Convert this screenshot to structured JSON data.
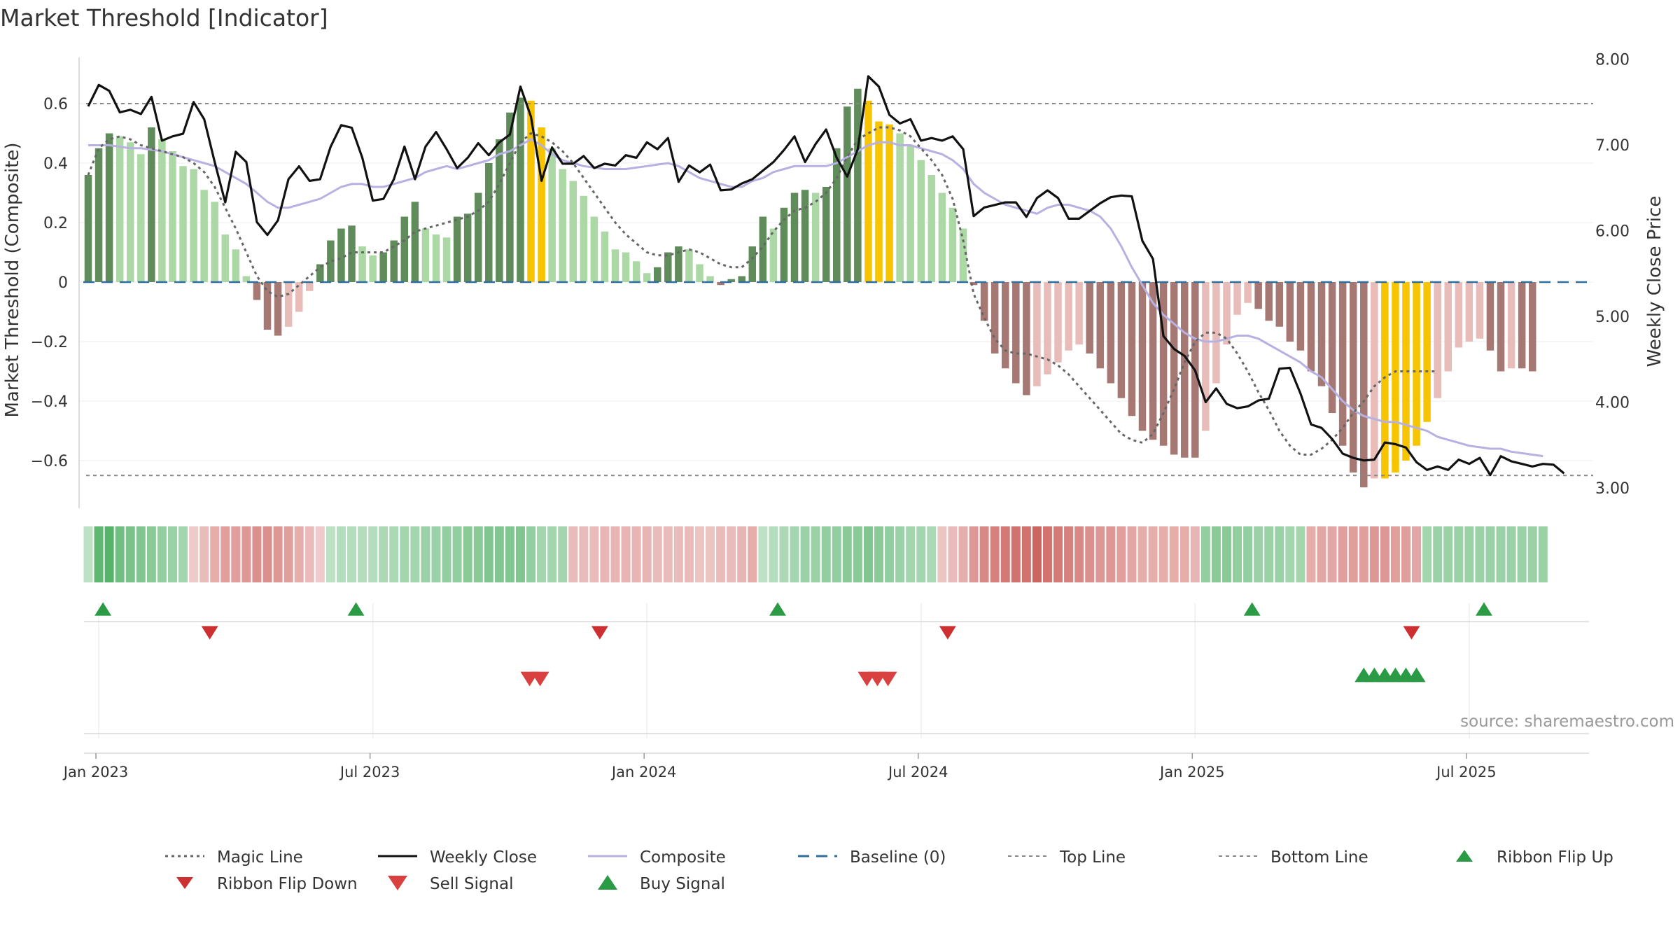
{
  "title": "Market Threshold [Indicator]",
  "source": "source: sharemaestro.com",
  "chart_data": {
    "type": "bar",
    "title": "Market Threshold [Indicator]",
    "ylabel_left": "Market Threshold (Composite)",
    "ylabel_right": "Weekly Close Price",
    "ylim_left": [
      -0.76,
      0.76
    ],
    "ylim_right": [
      2.9,
      8.0
    ],
    "left_ticks": [
      {
        "value": 0.6,
        "label": "0.6"
      },
      {
        "value": 0.4,
        "label": "0.4"
      },
      {
        "value": 0.2,
        "label": "0.2"
      },
      {
        "value": 0,
        "label": "0"
      },
      {
        "value": -0.2,
        "label": "−0.2"
      },
      {
        "value": -0.4,
        "label": "−0.4"
      },
      {
        "value": -0.6,
        "label": "−0.6"
      }
    ],
    "right_ticks": [
      {
        "value": 8,
        "label": "8.00"
      },
      {
        "value": 7,
        "label": "7.00"
      },
      {
        "value": 6,
        "label": "6.00"
      },
      {
        "value": 5,
        "label": "5.00"
      },
      {
        "value": 4,
        "label": "4.00"
      },
      {
        "value": 3,
        "label": "3.00"
      }
    ],
    "x_ticks": [
      {
        "week": 1,
        "label": "Jan 2023"
      },
      {
        "week": 27,
        "label": "Jul 2023"
      },
      {
        "week": 53,
        "label": "Jan 2024"
      },
      {
        "week": 79,
        "label": "Jul 2024"
      },
      {
        "week": 105,
        "label": "Jan 2025"
      },
      {
        "week": 131,
        "label": "Jul 2025"
      }
    ],
    "top_line": 0.6,
    "bottom_line": -0.65,
    "baseline": 0,
    "weeks_start_label": "2022-12-19",
    "bars": [
      0.36,
      0.45,
      0.5,
      0.49,
      0.47,
      0.43,
      0.52,
      0.48,
      0.44,
      0.39,
      0.38,
      0.31,
      0.27,
      0.16,
      0.11,
      0.02,
      -0.06,
      -0.16,
      -0.18,
      -0.15,
      -0.1,
      -0.03,
      0.06,
      0.14,
      0.18,
      0.19,
      0.12,
      0.09,
      0.1,
      0.14,
      0.22,
      0.27,
      0.18,
      0.16,
      0.15,
      0.22,
      0.23,
      0.3,
      0.4,
      0.48,
      0.57,
      0.62,
      0.61,
      0.52,
      0.45,
      0.38,
      0.34,
      0.29,
      0.22,
      0.17,
      0.11,
      0.1,
      0.07,
      0.03,
      0.05,
      0.1,
      0.12,
      0.11,
      0.06,
      0.02,
      -0.01,
      0.01,
      0.02,
      0.12,
      0.22,
      0.18,
      0.25,
      0.3,
      0.31,
      0.3,
      0.32,
      0.45,
      0.59,
      0.65,
      0.61,
      0.54,
      0.53,
      0.5,
      0.46,
      0.41,
      0.36,
      0.3,
      0.25,
      0.18,
      -0.01,
      -0.13,
      -0.24,
      -0.29,
      -0.34,
      -0.38,
      -0.35,
      -0.31,
      -0.27,
      -0.23,
      -0.21,
      -0.24,
      -0.29,
      -0.34,
      -0.39,
      -0.45,
      -0.5,
      -0.53,
      -0.55,
      -0.58,
      -0.59,
      -0.59,
      -0.5,
      -0.34,
      -0.21,
      -0.11,
      -0.07,
      -0.09,
      -0.13,
      -0.15,
      -0.2,
      -0.23,
      -0.3,
      -0.35,
      -0.44,
      -0.55,
      -0.64,
      -0.69,
      -0.66,
      -0.66,
      -0.64,
      -0.6,
      -0.55,
      -0.47,
      -0.39,
      -0.3,
      -0.22,
      -0.2,
      -0.19,
      -0.23,
      -0.3,
      -0.29,
      -0.29,
      -0.3
    ],
    "golden_weeks": [
      42,
      43,
      74,
      75,
      76,
      123,
      124,
      125,
      126,
      127
    ],
    "weekly_close": [
      7.45,
      7.7,
      7.63,
      7.38,
      7.41,
      7.36,
      7.56,
      7.05,
      7.1,
      7.13,
      7.5,
      7.3,
      6.8,
      6.33,
      6.92,
      6.8,
      6.1,
      5.95,
      6.12,
      6.6,
      6.75,
      6.58,
      6.6,
      6.98,
      7.23,
      7.2,
      6.85,
      6.35,
      6.37,
      6.6,
      6.98,
      6.6,
      6.98,
      7.15,
      6.95,
      6.73,
      6.85,
      7.02,
      6.88,
      7.03,
      7.12,
      7.68,
      7.33,
      6.58,
      6.97,
      6.78,
      6.78,
      6.87,
      6.73,
      6.78,
      6.76,
      6.88,
      6.85,
      7.03,
      6.95,
      7.08,
      6.57,
      6.76,
      6.68,
      6.77,
      6.47,
      6.48,
      6.55,
      6.6,
      6.7,
      6.8,
      6.94,
      7.1,
      6.8,
      7.01,
      7.18,
      6.85,
      6.63,
      6.95,
      7.8,
      7.68,
      7.35,
      7.25,
      7.3,
      7.05,
      7.08,
      7.05,
      7.1,
      6.95,
      6.17,
      6.27,
      6.3,
      6.33,
      6.33,
      6.16,
      6.38,
      6.47,
      6.38,
      6.14,
      6.14,
      6.23,
      6.32,
      6.39,
      6.41,
      6.4,
      5.88,
      5.67,
      4.77,
      4.62,
      4.54,
      4.37,
      4.0,
      4.16,
      3.98,
      3.93,
      3.95,
      4.02,
      4.04,
      4.39,
      4.4,
      4.1,
      3.74,
      3.7,
      3.57,
      3.4,
      3.35,
      3.32,
      3.33,
      3.53,
      3.51,
      3.47,
      3.3,
      3.21,
      3.25,
      3.21,
      3.33,
      3.28,
      3.35,
      3.15,
      3.37,
      3.31,
      3.28,
      3.25,
      3.28,
      3.27,
      3.17
    ],
    "composite": [
      0.46,
      0.46,
      0.46,
      0.455,
      0.45,
      0.45,
      0.445,
      0.44,
      0.43,
      0.42,
      0.41,
      0.4,
      0.39,
      0.37,
      0.35,
      0.33,
      0.3,
      0.27,
      0.25,
      0.25,
      0.26,
      0.27,
      0.28,
      0.3,
      0.32,
      0.33,
      0.33,
      0.32,
      0.32,
      0.33,
      0.34,
      0.35,
      0.37,
      0.38,
      0.39,
      0.38,
      0.39,
      0.4,
      0.41,
      0.43,
      0.44,
      0.46,
      0.48,
      0.46,
      0.43,
      0.41,
      0.4,
      0.39,
      0.385,
      0.38,
      0.38,
      0.38,
      0.385,
      0.39,
      0.395,
      0.4,
      0.39,
      0.37,
      0.35,
      0.34,
      0.33,
      0.32,
      0.32,
      0.34,
      0.35,
      0.37,
      0.38,
      0.39,
      0.39,
      0.39,
      0.39,
      0.4,
      0.42,
      0.44,
      0.46,
      0.47,
      0.47,
      0.46,
      0.46,
      0.45,
      0.44,
      0.43,
      0.41,
      0.38,
      0.33,
      0.3,
      0.28,
      0.26,
      0.25,
      0.24,
      0.23,
      0.25,
      0.26,
      0.26,
      0.25,
      0.24,
      0.22,
      0.18,
      0.12,
      0.05,
      -0.01,
      -0.07,
      -0.11,
      -0.14,
      -0.17,
      -0.19,
      -0.2,
      -0.2,
      -0.19,
      -0.18,
      -0.18,
      -0.19,
      -0.21,
      -0.23,
      -0.25,
      -0.27,
      -0.3,
      -0.32,
      -0.36,
      -0.4,
      -0.43,
      -0.45,
      -0.46,
      -0.47,
      -0.47,
      -0.48,
      -0.49,
      -0.5,
      -0.52,
      -0.53,
      -0.54,
      -0.55,
      -0.555,
      -0.56,
      -0.56,
      -0.57,
      -0.575,
      -0.58,
      -0.585
    ],
    "magic_line": [
      0.36,
      0.45,
      0.48,
      0.49,
      0.48,
      0.46,
      0.45,
      0.44,
      0.43,
      0.42,
      0.4,
      0.37,
      0.32,
      0.25,
      0.18,
      0.1,
      0.02,
      -0.03,
      -0.05,
      -0.04,
      -0.01,
      0.02,
      0.05,
      0.07,
      0.08,
      0.1,
      0.1,
      0.1,
      0.1,
      0.12,
      0.14,
      0.17,
      0.18,
      0.19,
      0.2,
      0.21,
      0.22,
      0.24,
      0.27,
      0.33,
      0.4,
      0.47,
      0.5,
      0.49,
      0.47,
      0.44,
      0.4,
      0.35,
      0.3,
      0.25,
      0.2,
      0.16,
      0.13,
      0.1,
      0.09,
      0.09,
      0.1,
      0.11,
      0.1,
      0.08,
      0.06,
      0.05,
      0.05,
      0.08,
      0.12,
      0.17,
      0.21,
      0.24,
      0.25,
      0.27,
      0.3,
      0.35,
      0.42,
      0.48,
      0.5,
      0.52,
      0.52,
      0.51,
      0.49,
      0.45,
      0.41,
      0.36,
      0.28,
      0.14,
      -0.04,
      -0.12,
      -0.19,
      -0.23,
      -0.24,
      -0.24,
      -0.25,
      -0.26,
      -0.28,
      -0.31,
      -0.35,
      -0.39,
      -0.43,
      -0.47,
      -0.51,
      -0.53,
      -0.54,
      -0.51,
      -0.44,
      -0.36,
      -0.27,
      -0.2,
      -0.17,
      -0.17,
      -0.19,
      -0.24,
      -0.3,
      -0.37,
      -0.43,
      -0.5,
      -0.55,
      -0.58,
      -0.58,
      -0.56,
      -0.53,
      -0.49,
      -0.44,
      -0.4,
      -0.35,
      -0.32,
      -0.3,
      -0.3,
      -0.3,
      -0.3,
      -0.3
    ],
    "ribbon": [
      0.15,
      0.7,
      0.75,
      0.6,
      0.55,
      0.5,
      0.45,
      0.4,
      0.35,
      0.3,
      -0.1,
      -0.2,
      -0.3,
      -0.4,
      -0.4,
      -0.45,
      -0.5,
      -0.5,
      -0.45,
      -0.4,
      -0.3,
      -0.2,
      -0.1,
      0.15,
      0.2,
      0.2,
      0.2,
      0.2,
      0.25,
      0.25,
      0.3,
      0.3,
      0.35,
      0.35,
      0.4,
      0.4,
      0.45,
      0.45,
      0.5,
      0.5,
      0.5,
      0.5,
      0.4,
      0.3,
      0.3,
      0.3,
      -0.2,
      -0.2,
      -0.2,
      -0.25,
      -0.25,
      -0.25,
      -0.25,
      -0.25,
      -0.2,
      -0.2,
      -0.2,
      -0.2,
      -0.15,
      -0.15,
      -0.2,
      -0.2,
      -0.25,
      -0.3,
      0.15,
      0.2,
      0.25,
      0.3,
      0.35,
      0.35,
      0.4,
      0.4,
      0.45,
      0.45,
      0.5,
      0.45,
      0.4,
      0.35,
      0.3,
      0.3,
      0.25,
      -0.15,
      -0.2,
      -0.3,
      -0.45,
      -0.55,
      -0.6,
      -0.65,
      -0.7,
      -0.7,
      -0.8,
      -0.7,
      -0.65,
      -0.6,
      -0.55,
      -0.5,
      -0.45,
      -0.45,
      -0.4,
      -0.35,
      -0.3,
      -0.3,
      -0.3,
      -0.3,
      -0.3,
      -0.25,
      0.4,
      0.45,
      0.45,
      0.4,
      0.4,
      0.35,
      0.35,
      0.35,
      0.3,
      0.3,
      -0.3,
      -0.35,
      -0.35,
      -0.4,
      -0.4,
      -0.4,
      -0.45,
      -0.45,
      -0.4,
      -0.4,
      -0.35,
      0.3,
      0.35,
      0.35,
      0.35,
      0.35,
      0.35,
      0.35,
      0.35,
      0.35,
      0.35,
      0.35,
      0.35
    ],
    "ribbon_flip_up_weeks": [
      2,
      26,
      66,
      111,
      133
    ],
    "ribbon_flip_down_weeks": [
      11,
      48,
      81,
      125
    ],
    "sell_signal_weeks": [
      42,
      43,
      74,
      75,
      76
    ],
    "buy_signal_weeks": [
      121,
      122,
      123,
      124,
      125,
      126
    ],
    "legend": [
      {
        "key": "magic",
        "label": "Magic Line"
      },
      {
        "key": "close",
        "label": "Weekly Close"
      },
      {
        "key": "composite",
        "label": "Composite"
      },
      {
        "key": "baseline",
        "label": "Baseline (0)"
      },
      {
        "key": "top",
        "label": "Top Line"
      },
      {
        "key": "bottom",
        "label": "Bottom Line"
      },
      {
        "key": "flipup",
        "label": "Ribbon Flip Up"
      },
      {
        "key": "flipdown",
        "label": "Ribbon Flip Down"
      },
      {
        "key": "sell",
        "label": "Sell Signal"
      },
      {
        "key": "buy",
        "label": "Buy Signal"
      }
    ]
  },
  "colors": {
    "strong_green": "#5f8c5a",
    "light_green": "#acd8a6",
    "strong_red": "#a57874",
    "light_red": "#e8bcb9",
    "golden": "#f6c400",
    "close_line": "#111111",
    "composite_line": "#b7b1e2",
    "magic_line": "#666666",
    "baseline": "#2f6f9f",
    "top_bottom_line": "#888888",
    "buy": "#2a9a45",
    "sell": "#d94040",
    "flip_down": "#cc3030"
  }
}
